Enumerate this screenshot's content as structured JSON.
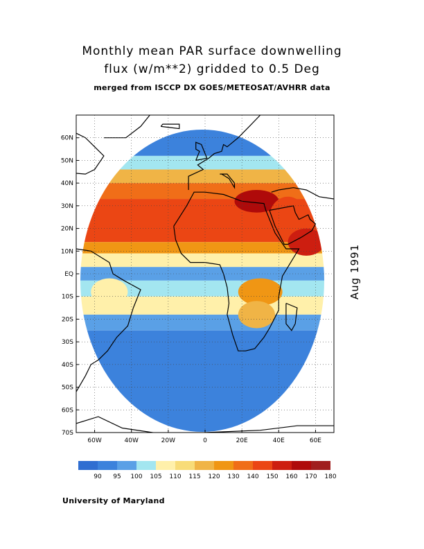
{
  "title": {
    "line1": "Monthly mean PAR surface downwelling",
    "line2": "flux (w/m**2) gridded to 0.5 Deg",
    "line3": "merged from ISCCP DX GOES/METEOSAT/AVHRR data"
  },
  "date": "Aug 1991",
  "credit": "University of Maryland",
  "map": {
    "lon_range": [
      -70,
      70
    ],
    "lat_range": [
      -70,
      70
    ],
    "grid": "dotted",
    "lon_ticks": [
      {
        "v": -60,
        "label": "60W"
      },
      {
        "v": -40,
        "label": "40W"
      },
      {
        "v": -20,
        "label": "20W"
      },
      {
        "v": 0,
        "label": "0"
      },
      {
        "v": 20,
        "label": "20E"
      },
      {
        "v": 40,
        "label": "40E"
      },
      {
        "v": 60,
        "label": "60E"
      }
    ],
    "lat_ticks": [
      {
        "v": 60,
        "label": "60N"
      },
      {
        "v": 50,
        "label": "50N"
      },
      {
        "v": 40,
        "label": "40N"
      },
      {
        "v": 30,
        "label": "30N"
      },
      {
        "v": 20,
        "label": "20N"
      },
      {
        "v": 10,
        "label": "10N"
      },
      {
        "v": 0,
        "label": "EQ"
      },
      {
        "v": -10,
        "label": "10S"
      },
      {
        "v": -20,
        "label": "20S"
      },
      {
        "v": -30,
        "label": "30S"
      },
      {
        "v": -40,
        "label": "40S"
      },
      {
        "v": -50,
        "label": "50S"
      },
      {
        "v": -60,
        "label": "60S"
      },
      {
        "v": -70,
        "label": "70S"
      }
    ],
    "field_bands": [
      {
        "lat": [
          52,
          70
        ],
        "level": 1
      },
      {
        "lat": [
          46,
          52
        ],
        "level": 3
      },
      {
        "lat": [
          40,
          46
        ],
        "level": 6
      },
      {
        "lat": [
          33,
          40
        ],
        "level": 8
      },
      {
        "lat": [
          14,
          33
        ],
        "level": 9
      },
      {
        "lat": [
          9,
          14
        ],
        "level": 7
      },
      {
        "lat": [
          3,
          9
        ],
        "level": 4
      },
      {
        "lat": [
          -3,
          3
        ],
        "level": 2
      },
      {
        "lat": [
          -10,
          -3
        ],
        "level": 3
      },
      {
        "lat": [
          -18,
          -10
        ],
        "level": 4
      },
      {
        "lat": [
          -25,
          -18
        ],
        "level": 2
      },
      {
        "lat": [
          -70,
          -25
        ],
        "level": 1
      }
    ],
    "field_patches": [
      {
        "lon": 28,
        "lat": 32,
        "rx": 12,
        "ry": 5,
        "level": 11
      },
      {
        "lon": 45,
        "lat": 25,
        "rx": 10,
        "ry": 9,
        "level": 9
      },
      {
        "lon": 55,
        "lat": 14,
        "rx": 10,
        "ry": 6,
        "level": 10
      },
      {
        "lon": 30,
        "lat": -8,
        "rx": 12,
        "ry": 6,
        "level": 7
      },
      {
        "lon": 28,
        "lat": -18,
        "rx": 10,
        "ry": 6,
        "level": 6
      },
      {
        "lon": -52,
        "lat": -8,
        "rx": 10,
        "ry": 6,
        "level": 4
      }
    ]
  },
  "colorbar": {
    "colors": [
      "#2f6ed1",
      "#3c82dc",
      "#5aa0e6",
      "#a3e6f0",
      "#fff0aa",
      "#f8dc78",
      "#f0b446",
      "#f09614",
      "#f06e18",
      "#eb4614",
      "#cd1e10",
      "#af0a0a",
      "#a01e1e"
    ],
    "labels": [
      "90",
      "95",
      "100",
      "105",
      "110",
      "115",
      "120",
      "130",
      "140",
      "150",
      "160",
      "170",
      "180"
    ]
  }
}
